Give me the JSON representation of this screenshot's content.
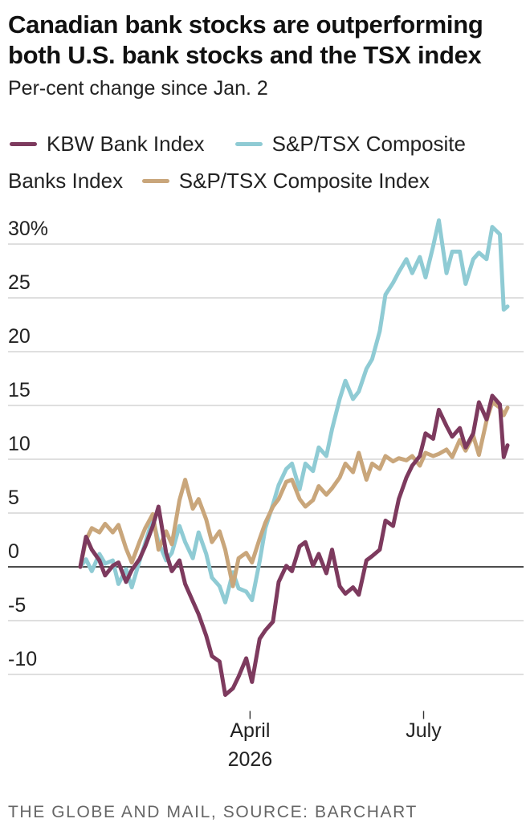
{
  "title": "Canadian bank stocks are outperforming both U.S. bank stocks and the TSX index",
  "subtitle": "Per-cent change since Jan. 2",
  "source": "THE GLOBE AND MAIL, SOURCE: BARCHART",
  "chart_data": {
    "type": "line",
    "title": "Canadian bank stocks are outperforming both U.S. bank stocks and the TSX index",
    "subtitle": "Per-cent change since Jan. 2",
    "ylabel": "",
    "xlabel": "",
    "ylim": [
      -12.5,
      32
    ],
    "xlim": [
      "2026-01-02",
      "2026-08-14"
    ],
    "grid": true,
    "legend": "top",
    "y_ticks": [
      {
        "value": 30,
        "label": "30%"
      },
      {
        "value": 25,
        "label": "25"
      },
      {
        "value": 20,
        "label": "20"
      },
      {
        "value": 15,
        "label": "15"
      },
      {
        "value": 10,
        "label": "10"
      },
      {
        "value": 5,
        "label": "5"
      },
      {
        "value": 0,
        "label": "0"
      },
      {
        "value": -5,
        "label": "-5"
      },
      {
        "value": -10,
        "label": "-10"
      }
    ],
    "x_ticks": [
      {
        "date": "2026-04-01",
        "line1": "April",
        "line2": "2026"
      },
      {
        "date": "2026-07-01",
        "line1": "July",
        "line2": ""
      }
    ],
    "series": [
      {
        "name": "S&P/TSX Composite Banks Index",
        "color": "#8fcbd4",
        "points": [
          [
            "2026-01-02",
            0
          ],
          [
            "2026-01-05",
            0.7
          ],
          [
            "2026-01-08",
            -0.4
          ],
          [
            "2026-01-12",
            1.2
          ],
          [
            "2026-01-15",
            0.3
          ],
          [
            "2026-01-19",
            0.6
          ],
          [
            "2026-01-22",
            -1.6
          ],
          [
            "2026-01-26",
            -0.2
          ],
          [
            "2026-01-29",
            -1.9
          ],
          [
            "2026-02-02",
            0.5
          ],
          [
            "2026-02-05",
            2.2
          ],
          [
            "2026-02-09",
            4.5
          ],
          [
            "2026-02-12",
            2.3
          ],
          [
            "2026-02-16",
            0.6
          ],
          [
            "2026-02-19",
            1.3
          ],
          [
            "2026-02-23",
            3.8
          ],
          [
            "2026-02-26",
            2.3
          ],
          [
            "2026-03-02",
            0.8
          ],
          [
            "2026-03-05",
            3.2
          ],
          [
            "2026-03-09",
            1.2
          ],
          [
            "2026-03-12",
            -1.0
          ],
          [
            "2026-03-16",
            -1.8
          ],
          [
            "2026-03-19",
            -3.3
          ],
          [
            "2026-03-23",
            -0.5
          ],
          [
            "2026-03-26",
            -2.0
          ],
          [
            "2026-03-30",
            -2.3
          ],
          [
            "2026-04-02",
            -3.1
          ],
          [
            "2026-04-06",
            0.5
          ],
          [
            "2026-04-09",
            3.6
          ],
          [
            "2026-04-13",
            5.8
          ],
          [
            "2026-04-16",
            7.6
          ],
          [
            "2026-04-20",
            9.1
          ],
          [
            "2026-04-23",
            9.6
          ],
          [
            "2026-04-27",
            7.2
          ],
          [
            "2026-04-30",
            9.6
          ],
          [
            "2026-05-04",
            8.9
          ],
          [
            "2026-05-07",
            11.1
          ],
          [
            "2026-05-11",
            10.3
          ],
          [
            "2026-05-14",
            12.8
          ],
          [
            "2026-05-18",
            15.6
          ],
          [
            "2026-05-21",
            17.3
          ],
          [
            "2026-05-25",
            15.6
          ],
          [
            "2026-05-28",
            16.3
          ],
          [
            "2026-06-01",
            18.4
          ],
          [
            "2026-06-04",
            19.3
          ],
          [
            "2026-06-08",
            21.9
          ],
          [
            "2026-06-11",
            25.3
          ],
          [
            "2026-06-15",
            26.4
          ],
          [
            "2026-06-18",
            27.4
          ],
          [
            "2026-06-22",
            28.6
          ],
          [
            "2026-06-25",
            27.3
          ],
          [
            "2026-06-29",
            28.8
          ],
          [
            "2026-07-02",
            26.9
          ],
          [
            "2026-07-06",
            29.8
          ],
          [
            "2026-07-09",
            32.2
          ],
          [
            "2026-07-13",
            27.3
          ],
          [
            "2026-07-16",
            29.3
          ],
          [
            "2026-07-20",
            29.3
          ],
          [
            "2026-07-23",
            26.3
          ],
          [
            "2026-07-27",
            28.6
          ],
          [
            "2026-07-30",
            29.2
          ],
          [
            "2026-08-03",
            28.6
          ],
          [
            "2026-08-06",
            31.6
          ],
          [
            "2026-08-10",
            30.9
          ],
          [
            "2026-08-12",
            23.9
          ],
          [
            "2026-08-14",
            24.2
          ]
        ]
      },
      {
        "name": "S&P/TSX Composite Index",
        "color": "#c9a67b",
        "points": [
          [
            "2026-01-02",
            0
          ],
          [
            "2026-01-05",
            2.5
          ],
          [
            "2026-01-08",
            3.6
          ],
          [
            "2026-01-12",
            3.2
          ],
          [
            "2026-01-15",
            4.0
          ],
          [
            "2026-01-19",
            3.2
          ],
          [
            "2026-01-22",
            3.9
          ],
          [
            "2026-01-26",
            1.7
          ],
          [
            "2026-01-29",
            0.4
          ],
          [
            "2026-02-02",
            2.3
          ],
          [
            "2026-02-05",
            3.6
          ],
          [
            "2026-02-09",
            4.9
          ],
          [
            "2026-02-12",
            1.6
          ],
          [
            "2026-02-16",
            3.3
          ],
          [
            "2026-02-19",
            2.1
          ],
          [
            "2026-02-23",
            6.2
          ],
          [
            "2026-02-26",
            8.1
          ],
          [
            "2026-03-02",
            5.4
          ],
          [
            "2026-03-05",
            6.3
          ],
          [
            "2026-03-09",
            4.4
          ],
          [
            "2026-03-12",
            2.3
          ],
          [
            "2026-03-16",
            3.3
          ],
          [
            "2026-03-19",
            1.6
          ],
          [
            "2026-03-23",
            -1.8
          ],
          [
            "2026-03-26",
            0.8
          ],
          [
            "2026-03-30",
            1.3
          ],
          [
            "2026-04-02",
            0.4
          ],
          [
            "2026-04-06",
            2.6
          ],
          [
            "2026-04-09",
            4.1
          ],
          [
            "2026-04-13",
            5.6
          ],
          [
            "2026-04-16",
            6.3
          ],
          [
            "2026-04-20",
            7.9
          ],
          [
            "2026-04-23",
            8.1
          ],
          [
            "2026-04-27",
            6.3
          ],
          [
            "2026-04-30",
            5.6
          ],
          [
            "2026-05-04",
            6.2
          ],
          [
            "2026-05-07",
            7.5
          ],
          [
            "2026-05-11",
            6.7
          ],
          [
            "2026-05-14",
            7.3
          ],
          [
            "2026-05-18",
            8.3
          ],
          [
            "2026-05-21",
            9.6
          ],
          [
            "2026-05-25",
            8.8
          ],
          [
            "2026-05-28",
            10.6
          ],
          [
            "2026-06-01",
            8.1
          ],
          [
            "2026-06-04",
            9.6
          ],
          [
            "2026-06-08",
            9.1
          ],
          [
            "2026-06-11",
            10.3
          ],
          [
            "2026-06-15",
            9.8
          ],
          [
            "2026-06-18",
            10.1
          ],
          [
            "2026-06-22",
            9.9
          ],
          [
            "2026-06-25",
            10.3
          ],
          [
            "2026-06-29",
            9.4
          ],
          [
            "2026-07-02",
            10.6
          ],
          [
            "2026-07-06",
            10.3
          ],
          [
            "2026-07-09",
            10.5
          ],
          [
            "2026-07-13",
            10.9
          ],
          [
            "2026-07-16",
            10.2
          ],
          [
            "2026-07-20",
            11.8
          ],
          [
            "2026-07-23",
            10.8
          ],
          [
            "2026-07-27",
            12.2
          ],
          [
            "2026-07-30",
            10.4
          ],
          [
            "2026-08-03",
            13.6
          ],
          [
            "2026-08-06",
            15.3
          ],
          [
            "2026-08-10",
            14.8
          ],
          [
            "2026-08-12",
            14.1
          ],
          [
            "2026-08-14",
            14.8
          ]
        ]
      },
      {
        "name": "KBW Bank Index",
        "color": "#7d3a5e",
        "points": [
          [
            "2026-01-02",
            0
          ],
          [
            "2026-01-05",
            2.8
          ],
          [
            "2026-01-08",
            1.6
          ],
          [
            "2026-01-12",
            0.6
          ],
          [
            "2026-01-15",
            -0.8
          ],
          [
            "2026-01-19",
            0.1
          ],
          [
            "2026-01-22",
            0.4
          ],
          [
            "2026-01-26",
            -1.4
          ],
          [
            "2026-01-29",
            -0.3
          ],
          [
            "2026-02-02",
            0.7
          ],
          [
            "2026-02-05",
            1.9
          ],
          [
            "2026-02-09",
            3.8
          ],
          [
            "2026-02-12",
            5.6
          ],
          [
            "2026-02-16",
            1.3
          ],
          [
            "2026-02-19",
            -0.4
          ],
          [
            "2026-02-23",
            0.6
          ],
          [
            "2026-02-26",
            -1.6
          ],
          [
            "2026-03-02",
            -3.2
          ],
          [
            "2026-03-05",
            -4.4
          ],
          [
            "2026-03-09",
            -6.4
          ],
          [
            "2026-03-12",
            -8.3
          ],
          [
            "2026-03-16",
            -8.8
          ],
          [
            "2026-03-19",
            -11.9
          ],
          [
            "2026-03-23",
            -11.3
          ],
          [
            "2026-03-26",
            -10.2
          ],
          [
            "2026-03-30",
            -8.5
          ],
          [
            "2026-04-02",
            -10.7
          ],
          [
            "2026-04-06",
            -6.7
          ],
          [
            "2026-04-09",
            -5.9
          ],
          [
            "2026-04-13",
            -5.1
          ],
          [
            "2026-04-16",
            -1.4
          ],
          [
            "2026-04-20",
            0.1
          ],
          [
            "2026-04-23",
            -0.4
          ],
          [
            "2026-04-27",
            1.9
          ],
          [
            "2026-04-30",
            2.3
          ],
          [
            "2026-05-04",
            0.1
          ],
          [
            "2026-05-07",
            1.2
          ],
          [
            "2026-05-11",
            -0.6
          ],
          [
            "2026-05-14",
            1.6
          ],
          [
            "2026-05-18",
            -1.8
          ],
          [
            "2026-05-21",
            -2.5
          ],
          [
            "2026-05-25",
            -1.9
          ],
          [
            "2026-05-28",
            -2.6
          ],
          [
            "2026-06-01",
            0.6
          ],
          [
            "2026-06-04",
            1.0
          ],
          [
            "2026-06-08",
            1.6
          ],
          [
            "2026-06-11",
            4.3
          ],
          [
            "2026-06-15",
            3.8
          ],
          [
            "2026-06-18",
            6.3
          ],
          [
            "2026-06-22",
            8.3
          ],
          [
            "2026-06-25",
            9.4
          ],
          [
            "2026-06-29",
            10.3
          ],
          [
            "2026-07-02",
            12.4
          ],
          [
            "2026-07-06",
            11.9
          ],
          [
            "2026-07-09",
            14.6
          ],
          [
            "2026-07-13",
            13.1
          ],
          [
            "2026-07-16",
            12.1
          ],
          [
            "2026-07-20",
            12.9
          ],
          [
            "2026-07-23",
            11.1
          ],
          [
            "2026-07-27",
            12.4
          ],
          [
            "2026-07-30",
            15.3
          ],
          [
            "2026-08-03",
            13.7
          ],
          [
            "2026-08-06",
            15.9
          ],
          [
            "2026-08-10",
            15.1
          ],
          [
            "2026-08-12",
            10.2
          ],
          [
            "2026-08-14",
            11.3
          ]
        ]
      }
    ]
  },
  "legend": {
    "items": [
      {
        "label": "KBW Bank Index",
        "color": "#7d3a5e"
      },
      {
        "label": "S&P/TSX Composite Banks Index",
        "color": "#8fcbd4"
      },
      {
        "label": "S&P/TSX Composite Index",
        "color": "#c9a67b"
      }
    ]
  }
}
